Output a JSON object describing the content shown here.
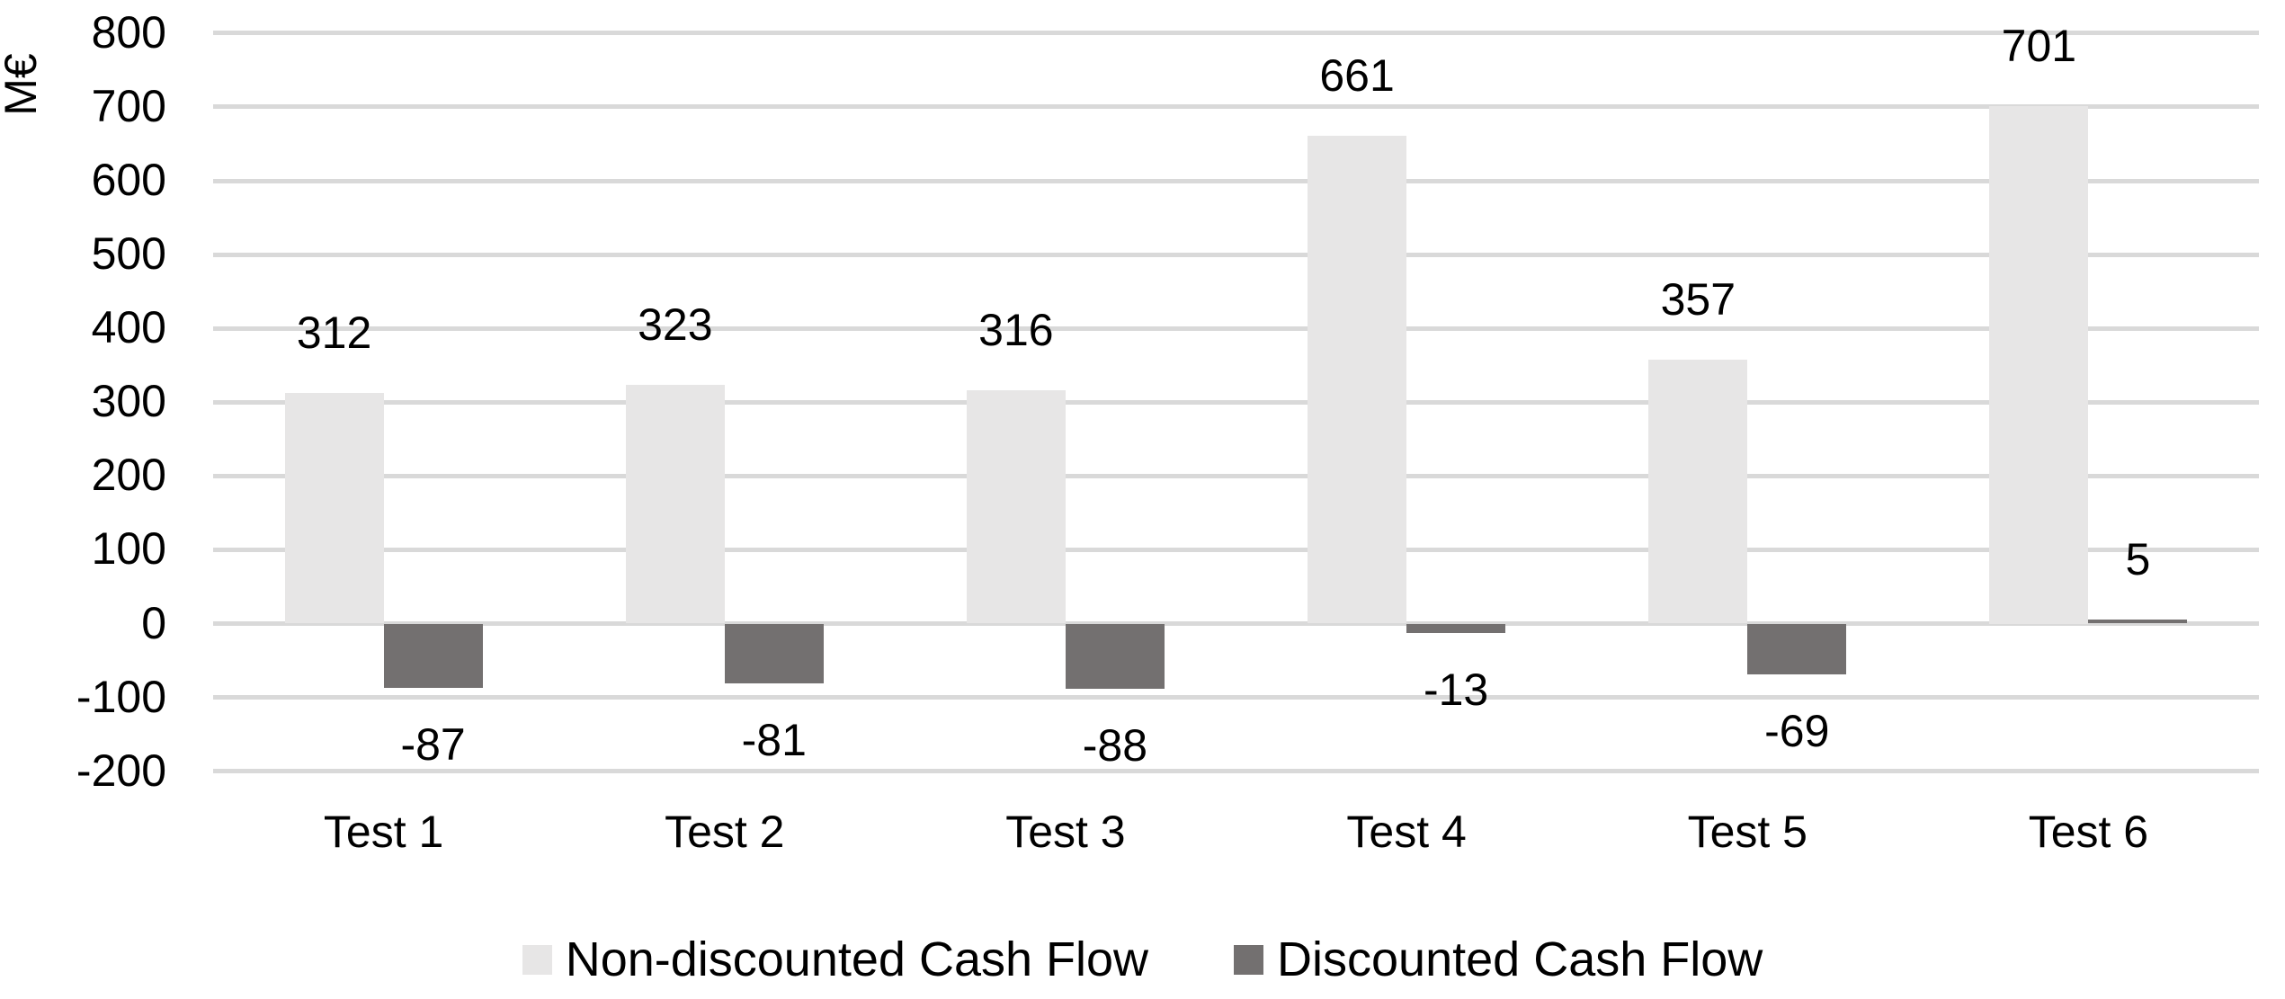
{
  "chart_data": {
    "type": "bar",
    "title": "",
    "ylabel": "M€",
    "categories": [
      "Test 1",
      "Test 2",
      "Test 3",
      "Test 4",
      "Test 5",
      "Test 6"
    ],
    "series": [
      {
        "name": "Non-discounted Cash Flow",
        "color": "#e7e6e6",
        "values": [
          312,
          323,
          316,
          661,
          357,
          701
        ]
      },
      {
        "name": "Discounted Cash Flow",
        "color": "#737070",
        "values": [
          -87,
          -81,
          -88,
          -13,
          -69,
          5
        ]
      }
    ],
    "data_labels": [
      "312",
      "323",
      "316",
      "661",
      "357",
      "701",
      "-87",
      "-81",
      "-88",
      "-13",
      "-69",
      "5"
    ],
    "y_ticks": [
      800,
      700,
      600,
      500,
      400,
      300,
      200,
      100,
      0,
      -100,
      -200
    ],
    "ylim": [
      -200,
      800
    ],
    "grid": true,
    "gridline_color": "#d9d9d9",
    "text_color": "#000000",
    "legend_position": "bottom"
  }
}
